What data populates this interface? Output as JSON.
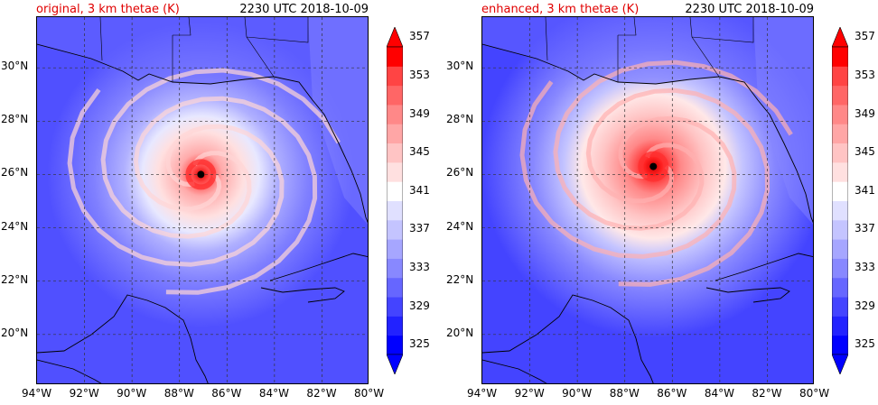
{
  "colors": {
    "title_left": "#e00000",
    "colormap": [
      "#0000ff",
      "#2222ff",
      "#4444ff",
      "#6666ff",
      "#8888ff",
      "#a6a6ff",
      "#c4c4ff",
      "#e0e0ff",
      "#ffffff",
      "#ffe0e0",
      "#ffc4c4",
      "#ffa6a6",
      "#ff8888",
      "#ff6666",
      "#ff4444",
      "#ff0000"
    ]
  },
  "chart_data": [
    {
      "type": "heatmap",
      "title": "original, 3 km thetae (K)",
      "subtitle": "2230 UTC 2018-10-09",
      "x_tick_labels": [
        "94°W",
        "92°W",
        "90°W",
        "88°W",
        "86°W",
        "84°W",
        "82°W",
        "80°W"
      ],
      "y_tick_labels": [
        "20°N",
        "22°N",
        "24°N",
        "26°N",
        "28°N",
        "30°N"
      ],
      "xlim": [
        -94,
        -80
      ],
      "ylim": [
        18.1,
        31.9
      ],
      "colorbar": {
        "levels": [
          325,
          327,
          329,
          331,
          333,
          335,
          337,
          339,
          341,
          343,
          345,
          347,
          349,
          351,
          353,
          355,
          357,
          359
        ],
        "tick_labels": [
          "325",
          "329",
          "333",
          "337",
          "341",
          "345",
          "349",
          "353",
          "357"
        ],
        "extend": "both"
      },
      "storm_center": {
        "lon": -87.1,
        "lat": 26.0
      },
      "grid": true
    },
    {
      "type": "heatmap",
      "title": "enhanced, 3 km thetae (K)",
      "subtitle": "2230 UTC 2018-10-09",
      "x_tick_labels": [
        "94°W",
        "92°W",
        "90°W",
        "88°W",
        "86°W",
        "84°W",
        "82°W",
        "80°W"
      ],
      "y_tick_labels": [
        "20°N",
        "22°N",
        "24°N",
        "26°N",
        "28°N",
        "30°N"
      ],
      "xlim": [
        -94,
        -80
      ],
      "ylim": [
        18.1,
        31.9
      ],
      "colorbar": {
        "levels": [
          325,
          327,
          329,
          331,
          333,
          335,
          337,
          339,
          341,
          343,
          345,
          347,
          349,
          351,
          353,
          355,
          357,
          359
        ],
        "tick_labels": [
          "325",
          "329",
          "333",
          "337",
          "341",
          "345",
          "349",
          "353",
          "357"
        ],
        "extend": "both"
      },
      "storm_center": {
        "lon": -86.8,
        "lat": 26.3
      },
      "grid": true
    }
  ]
}
